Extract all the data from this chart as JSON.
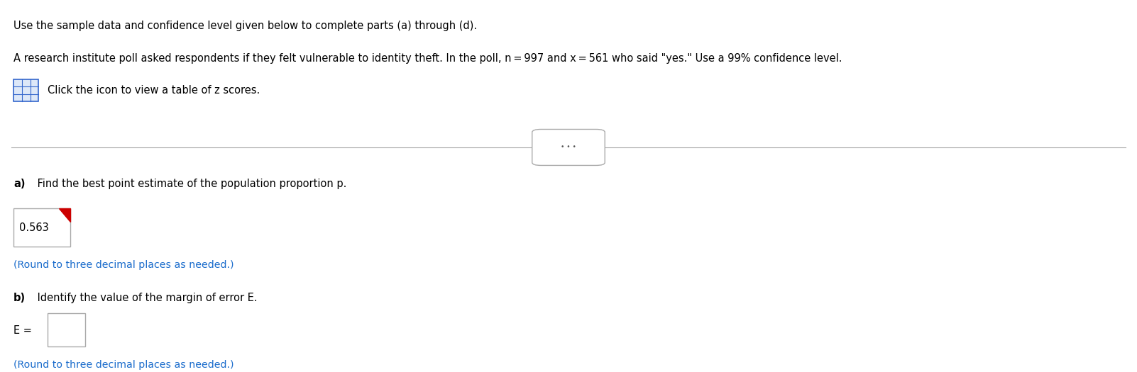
{
  "line1": "Use the sample data and confidence level given below to complete parts (a) through (d).",
  "line2": "A research institute poll asked respondents if they felt vulnerable to identity theft. In the poll, n = 997 and x = 561 who said \"yes.\" Use a 99% confidence level.",
  "line3_icon_text": "Click the icon to view a table of z scores.",
  "part_a_label": "a) Find the best point estimate of the population proportion p.",
  "part_a_bold": "a)",
  "part_a_rest": " Find the best point estimate of the population proportion p.",
  "answer_a": "0.563",
  "round_note": "(Round to three decimal places as needed.)",
  "part_b_label": "b) Identify the value of the margin of error E.",
  "part_b_bold": "b)",
  "part_b_rest": " Identify the value of the margin of error E.",
  "answer_b_prefix": "E =",
  "round_note_b": "(Round to three decimal places as needed.)",
  "bg_color": "#ffffff",
  "text_color": "#000000",
  "blue_text_color": "#1a6ccc",
  "box_border_color": "#aaaaaa",
  "divider_color": "#aaaaaa",
  "icon_border_color": "#3366cc",
  "icon_bg_color": "#dde8f8",
  "red_corner_color": "#cc0000",
  "dots_color": "#555555"
}
